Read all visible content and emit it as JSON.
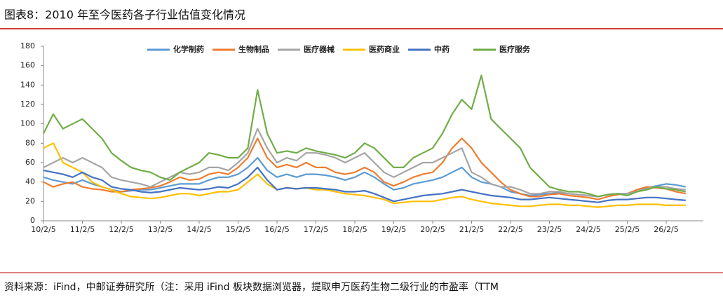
{
  "chart_data": {
    "type": "line",
    "title": "图表8：2010 年至今医药各子行业估值变化情况",
    "source": "资料来源：iFind，中邮证券研究所（注：采用 iFind 板块数据浏览器，提取申万医药生物二级行业的市盈率（TTM",
    "categories": [
      "10/2/5",
      null,
      null,
      null,
      "11/2/5",
      null,
      null,
      null,
      "12/2/5",
      null,
      null,
      null,
      "13/2/5",
      null,
      null,
      null,
      "14/2/5",
      null,
      null,
      null,
      "15/2/5",
      null,
      null,
      null,
      "16/2/5",
      null,
      null,
      null,
      "17/2/5",
      null,
      null,
      null,
      "18/2/5",
      null,
      null,
      null,
      "19/2/5",
      null,
      null,
      null,
      "20/2/5",
      null,
      null,
      null,
      "21/2/5",
      null,
      null,
      null,
      "22/2/5",
      null,
      null,
      null,
      "23/2/5",
      null,
      null,
      null,
      "24/2/5",
      null,
      null,
      null,
      "25/2/5",
      null,
      null,
      null,
      "26/2/5",
      null,
      null
    ],
    "ylim": [
      0,
      180
    ],
    "yticks": [
      0,
      20,
      40,
      60,
      80,
      100,
      120,
      140,
      160,
      180
    ],
    "series": [
      {
        "name": "化学制药",
        "color": "#5b9bd5",
        "values": [
          45,
          42,
          40,
          38,
          42,
          38,
          35,
          32,
          30,
          31,
          32,
          32,
          34,
          36,
          38,
          38,
          38,
          42,
          45,
          45,
          48,
          55,
          65,
          52,
          45,
          48,
          45,
          48,
          48,
          47,
          45,
          42,
          45,
          50,
          45,
          38,
          32,
          34,
          38,
          40,
          42,
          45,
          50,
          55,
          45,
          40,
          38,
          35,
          30,
          28,
          26,
          27,
          28,
          29,
          28,
          27,
          26,
          25,
          27,
          28,
          28,
          32,
          34,
          36,
          38,
          37,
          35
        ]
      },
      {
        "name": "生物制品",
        "color": "#ed7d31",
        "values": [
          40,
          35,
          38,
          40,
          35,
          33,
          32,
          30,
          30,
          32,
          33,
          34,
          36,
          40,
          45,
          42,
          43,
          48,
          50,
          48,
          55,
          65,
          85,
          65,
          55,
          58,
          55,
          60,
          55,
          55,
          50,
          48,
          50,
          55,
          50,
          40,
          36,
          40,
          45,
          48,
          50,
          60,
          75,
          85,
          75,
          60,
          50,
          40,
          32,
          28,
          25,
          25,
          27,
          28,
          26,
          25,
          24,
          22,
          25,
          27,
          28,
          32,
          35,
          34,
          33,
          30,
          28
        ]
      },
      {
        "name": "医疗器械",
        "color": "#a5a5a5",
        "values": [
          55,
          60,
          65,
          60,
          65,
          60,
          55,
          45,
          42,
          40,
          38,
          35,
          40,
          45,
          50,
          48,
          50,
          55,
          55,
          52,
          60,
          70,
          95,
          75,
          60,
          65,
          62,
          70,
          70,
          68,
          65,
          60,
          65,
          70,
          60,
          50,
          45,
          50,
          55,
          60,
          60,
          65,
          70,
          75,
          50,
          45,
          38,
          35,
          35,
          32,
          28,
          28,
          30,
          30,
          28,
          27,
          26,
          25,
          27,
          28,
          28,
          30,
          33,
          35,
          35,
          33,
          32
        ]
      },
      {
        "name": "医药商业",
        "color": "#ffc000",
        "values": [
          75,
          80,
          60,
          55,
          50,
          40,
          35,
          32,
          28,
          25,
          24,
          23,
          24,
          26,
          28,
          28,
          26,
          28,
          30,
          30,
          32,
          40,
          48,
          38,
          32,
          34,
          33,
          34,
          32,
          32,
          30,
          28,
          27,
          26,
          24,
          22,
          18,
          19,
          20,
          20,
          20,
          22,
          24,
          25,
          22,
          20,
          18,
          17,
          16,
          15,
          15,
          16,
          17,
          17,
          16,
          16,
          15,
          14,
          15,
          16,
          16,
          17,
          17,
          17,
          16,
          16,
          16
        ]
      },
      {
        "name": "中药",
        "color": "#4472c4",
        "values": [
          52,
          50,
          48,
          45,
          50,
          45,
          42,
          35,
          33,
          32,
          30,
          29,
          30,
          32,
          34,
          33,
          32,
          33,
          35,
          34,
          38,
          45,
          55,
          42,
          32,
          34,
          33,
          34,
          34,
          33,
          32,
          30,
          30,
          31,
          28,
          24,
          20,
          22,
          24,
          26,
          27,
          28,
          30,
          32,
          30,
          28,
          26,
          25,
          24,
          22,
          22,
          23,
          24,
          23,
          22,
          21,
          20,
          19,
          21,
          22,
          22,
          23,
          24,
          24,
          23,
          22,
          21
        ]
      },
      {
        "name": "医疗服务",
        "color": "#70ad47",
        "values": [
          90,
          110,
          95,
          100,
          105,
          95,
          85,
          70,
          62,
          55,
          52,
          50,
          45,
          42,
          50,
          55,
          60,
          70,
          68,
          65,
          65,
          75,
          135,
          90,
          70,
          72,
          70,
          75,
          72,
          70,
          68,
          65,
          70,
          80,
          75,
          65,
          55,
          55,
          65,
          70,
          75,
          90,
          110,
          125,
          115,
          150,
          105,
          95,
          85,
          75,
          55,
          45,
          35,
          32,
          30,
          30,
          28,
          25,
          27,
          28,
          26,
          30,
          32,
          35,
          33,
          32,
          30
        ]
      }
    ]
  }
}
